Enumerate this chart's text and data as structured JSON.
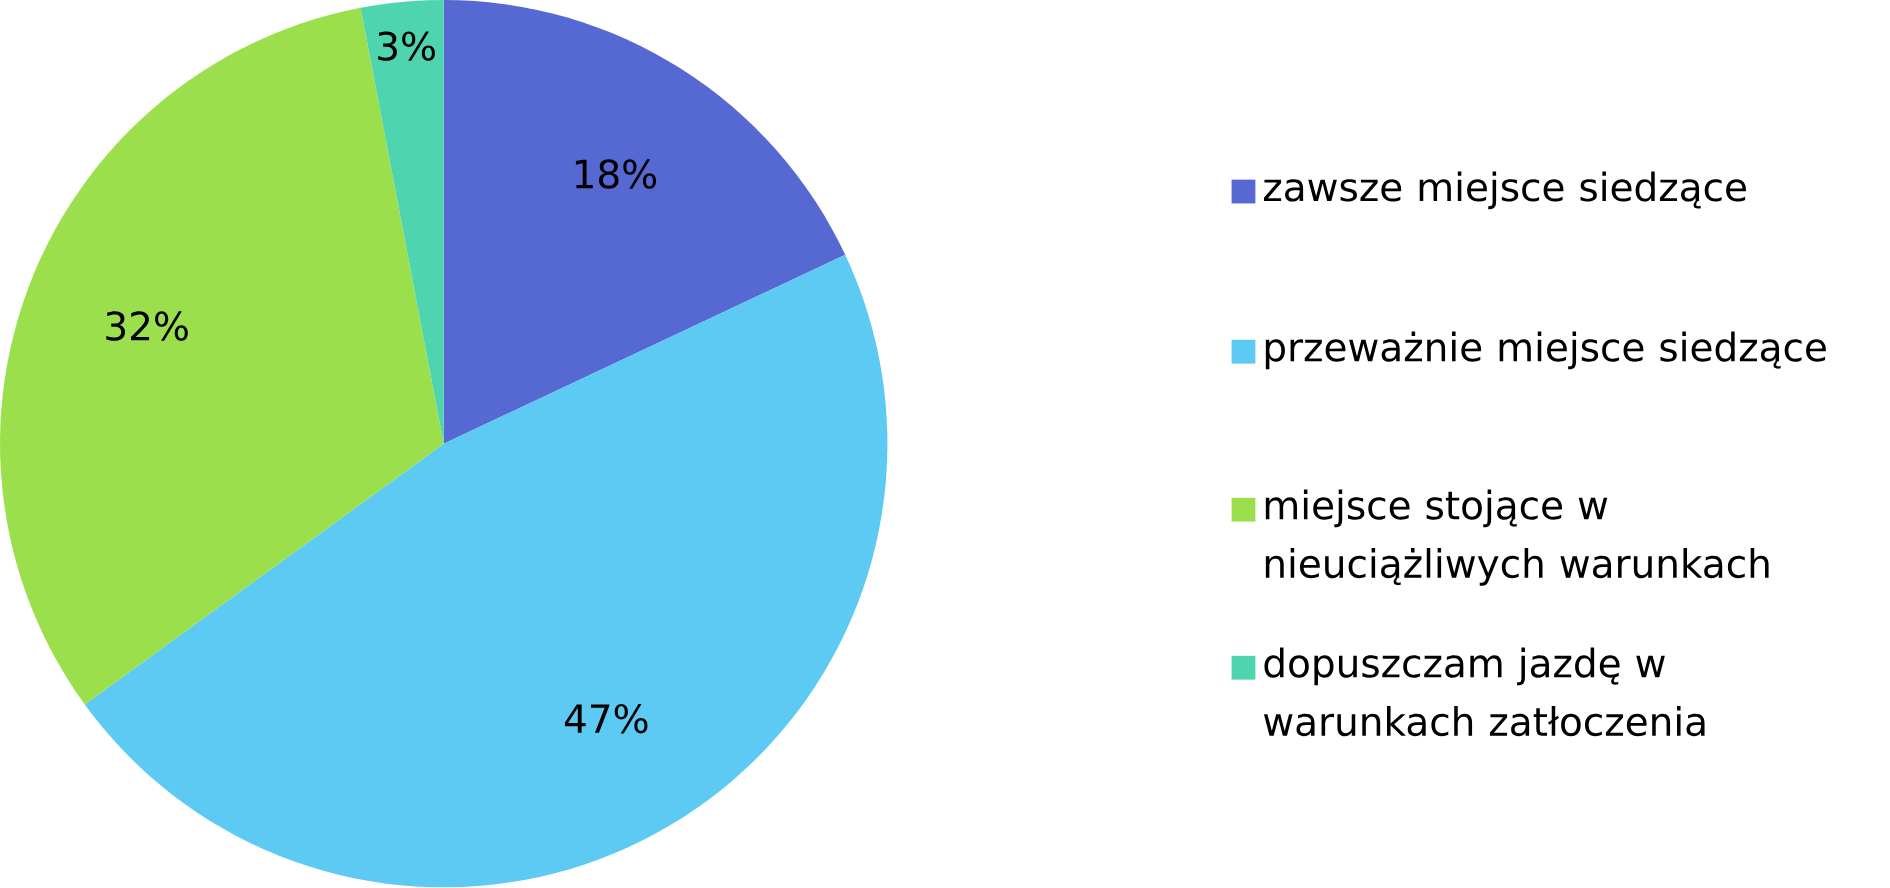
{
  "chart_data": {
    "type": "pie",
    "categories": [
      "zawsze miejsce siedzące",
      "przeważnie miejsce siedzące",
      "miejsce stojące w nieuciążliwych warunkach",
      "dopuszczam jazdę w warunkach zatłoczenia"
    ],
    "values": [
      18,
      47,
      32,
      3
    ],
    "colors": [
      "#5668d2",
      "#5ccaf2",
      "#9be04c",
      "#4fd4b0"
    ],
    "value_labels": [
      "18%",
      "47%",
      "32%",
      "3%"
    ],
    "legend": "right"
  }
}
